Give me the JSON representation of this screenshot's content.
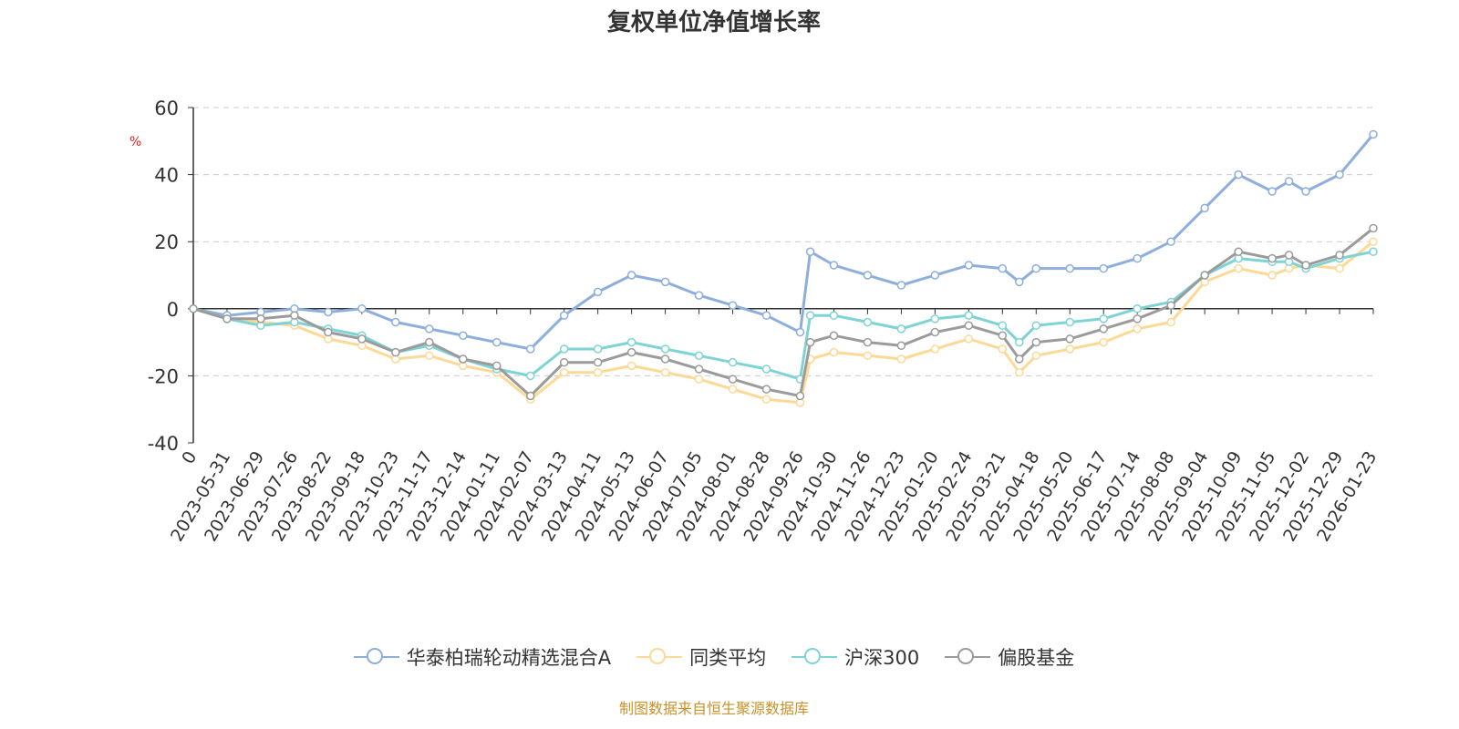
{
  "chart_data": {
    "type": "line",
    "title": "复权单位净值增长率",
    "ylabel": "%",
    "ylim": [
      -40,
      60
    ],
    "yticks": [
      60,
      40,
      20,
      0,
      -20,
      -40
    ],
    "grid": true,
    "legend_position": "bottom",
    "x_ticks": [
      "0",
      "2023-05-31",
      "2023-06-29",
      "2023-07-26",
      "2023-08-22",
      "2023-09-18",
      "2023-10-23",
      "2023-11-17",
      "2023-12-14",
      "2024-01-11",
      "2024-02-07",
      "2024-03-13",
      "2024-04-11",
      "2024-05-13",
      "2024-06-07",
      "2024-07-05",
      "2024-08-01",
      "2024-08-28",
      "2024-09-26",
      "2024-10-30",
      "2024-11-26",
      "2024-12-23",
      "2025-01-20",
      "2025-02-24",
      "2025-03-21",
      "2025-04-18",
      "2025-05-20",
      "2025-06-17",
      "2025-07-14",
      "2025-08-08",
      "2025-09-04",
      "2025-10-09",
      "2025-11-05",
      "2025-12-02",
      "2025-12-29",
      "2026-01-23"
    ],
    "x": [
      0,
      1,
      2,
      3,
      4,
      5,
      6,
      7,
      8,
      9,
      10,
      11,
      12,
      13,
      14,
      15,
      16,
      17,
      18,
      18.3,
      19,
      20,
      21,
      22,
      23,
      24,
      24.5,
      25,
      26,
      27,
      28,
      29,
      30,
      31,
      32,
      32.5,
      33,
      34,
      35
    ],
    "series": [
      {
        "name": "华泰柏瑞轮动精选混合A",
        "color": "#8eaedc",
        "values": [
          0,
          -2,
          -1,
          0,
          -1,
          0,
          -4,
          -6,
          -8,
          -10,
          -12,
          -2,
          5,
          10,
          8,
          4,
          1,
          -2,
          -7,
          17,
          13,
          10,
          7,
          10,
          13,
          12,
          8,
          12,
          12,
          12,
          15,
          20,
          30,
          40,
          35,
          38,
          35,
          40,
          52
        ]
      },
      {
        "name": "同类平均",
        "color": "#fcd995",
        "values": [
          0,
          -3,
          -4,
          -5,
          -9,
          -11,
          -15,
          -14,
          -17,
          -19,
          -27,
          -19,
          -19,
          -17,
          -19,
          -21,
          -24,
          -27,
          -28,
          -15,
          -13,
          -14,
          -15,
          -12,
          -9,
          -12,
          -19,
          -14,
          -12,
          -10,
          -6,
          -4,
          8,
          12,
          10,
          12,
          13,
          12,
          20
        ]
      },
      {
        "name": "沪深300",
        "color": "#7ed3d5",
        "values": [
          0,
          -3,
          -5,
          -4,
          -6,
          -8,
          -13,
          -11,
          -15,
          -18,
          -20,
          -12,
          -12,
          -10,
          -12,
          -14,
          -16,
          -18,
          -21,
          -2,
          -2,
          -4,
          -6,
          -3,
          -2,
          -5,
          -10,
          -5,
          -4,
          -3,
          0,
          2,
          10,
          15,
          14,
          14,
          12,
          15,
          17
        ]
      },
      {
        "name": "偏股基金",
        "color": "#9b9b9b",
        "values": [
          0,
          -3,
          -3,
          -2,
          -7,
          -9,
          -13,
          -10,
          -15,
          -17,
          -26,
          -16,
          -16,
          -13,
          -15,
          -18,
          -21,
          -24,
          -26,
          -10,
          -8,
          -10,
          -11,
          -7,
          -5,
          -8,
          -15,
          -10,
          -9,
          -6,
          -3,
          1,
          10,
          17,
          15,
          16,
          13,
          16,
          24
        ]
      }
    ]
  },
  "source": "制图数据来自恒生聚源数据库"
}
